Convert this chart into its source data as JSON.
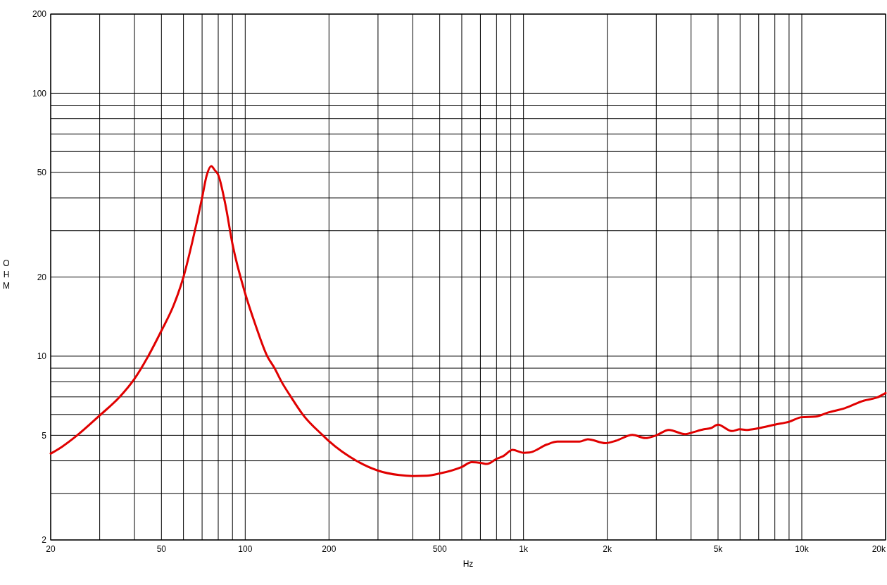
{
  "chart_data": {
    "type": "line",
    "xlabel": "Hz",
    "ylabel": "OHM",
    "log": "xy",
    "grid": true,
    "xlim": [
      20,
      20000
    ],
    "ylim": [
      2,
      200
    ],
    "xticks": [
      20,
      {
        "value": 30,
        "label": null
      },
      {
        "value": 40,
        "label": null
      },
      50,
      {
        "value": 60,
        "label": null
      },
      {
        "value": 70,
        "label": null
      },
      {
        "value": 80,
        "label": null
      },
      {
        "value": 90,
        "label": null
      },
      100,
      200,
      {
        "value": 300,
        "label": null
      },
      {
        "value": 400,
        "label": null
      },
      500,
      {
        "value": 600,
        "label": null
      },
      {
        "value": 700,
        "label": null
      },
      {
        "value": 800,
        "label": null
      },
      {
        "value": 900,
        "label": null
      },
      {
        "value": 1000,
        "label": "1k"
      },
      {
        "value": 2000,
        "label": "2k"
      },
      {
        "value": 3000,
        "label": null
      },
      {
        "value": 4000,
        "label": null
      },
      {
        "value": 5000,
        "label": "5k"
      },
      {
        "value": 6000,
        "label": null
      },
      {
        "value": 7000,
        "label": null
      },
      {
        "value": 8000,
        "label": null
      },
      {
        "value": 9000,
        "label": null
      },
      {
        "value": 10000,
        "label": "10k"
      },
      {
        "value": 20000,
        "label": "20k"
      }
    ],
    "yticks": [
      2,
      {
        "value": 3,
        "label": null
      },
      {
        "value": 4,
        "label": null
      },
      5,
      {
        "value": 6,
        "label": null
      },
      {
        "value": 7,
        "label": null
      },
      {
        "value": 8,
        "label": null
      },
      {
        "value": 9,
        "label": null
      },
      10,
      20,
      {
        "value": 30,
        "label": null
      },
      {
        "value": 40,
        "label": null
      },
      50,
      {
        "value": 60,
        "label": null
      },
      {
        "value": 70,
        "label": null
      },
      {
        "value": 80,
        "label": null
      },
      {
        "value": 90,
        "label": null
      },
      100,
      200
    ],
    "x": [
      20,
      22,
      24.9,
      30,
      35.4,
      40,
      44.7,
      50,
      55.3,
      60,
      64.6,
      70,
      72.6,
      75.5,
      77.7,
      80,
      84.8,
      90,
      100,
      109,
      120,
      127.5,
      135,
      146,
      161,
      190,
      200,
      252,
      300,
      357,
      400,
      450,
      500,
      600,
      651,
      700,
      739,
      800,
      846,
      914,
      1000,
      1050,
      1212,
      1323,
      1590,
      1702,
      1970,
      2150,
      2462,
      2739,
      3000,
      3327,
      3811,
      4000,
      4450,
      4700,
      5000,
      5596,
      6000,
      6300,
      7000,
      8000,
      9000,
      10000,
      11190,
      12450,
      14270,
      16670,
      18540,
      20000
    ],
    "series": [
      {
        "color": "#e00000",
        "values": [
          4.26,
          4.53,
          5.0,
          5.95,
          7.0,
          8.2,
          9.95,
          12.5,
          15.6,
          20.0,
          27.3,
          40.0,
          48.4,
          52.8,
          51.0,
          48.9,
          37.9,
          26.7,
          17.3,
          13.1,
          10.0,
          9.0,
          8.0,
          7.0,
          6.0,
          5.0,
          4.75,
          3.99,
          3.67,
          3.53,
          3.5,
          3.51,
          3.58,
          3.79,
          3.95,
          3.93,
          3.89,
          4.07,
          4.17,
          4.4,
          4.29,
          4.3,
          4.61,
          4.73,
          4.73,
          4.83,
          4.67,
          4.77,
          5.02,
          4.88,
          5.0,
          5.24,
          5.05,
          5.11,
          5.27,
          5.32,
          5.49,
          5.19,
          5.27,
          5.24,
          5.32,
          5.49,
          5.63,
          5.86,
          5.89,
          6.11,
          6.34,
          6.77,
          6.95,
          7.24
        ]
      }
    ]
  }
}
